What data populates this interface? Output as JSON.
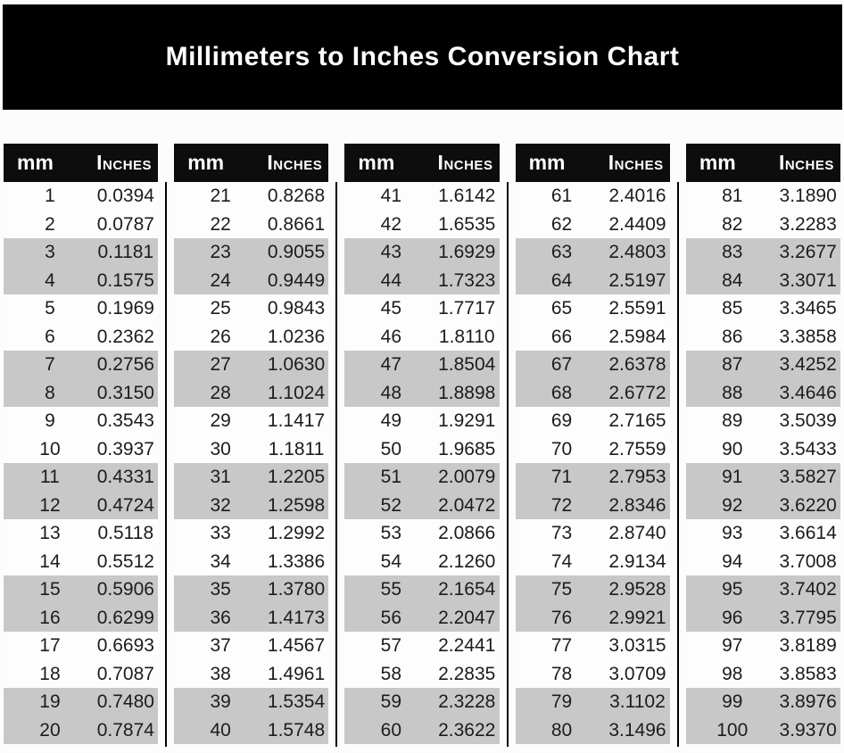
{
  "banner": {
    "title": "Millimeters to Inches Conversion Chart"
  },
  "header": {
    "mm_label": "mm",
    "inches_label": "Inches"
  },
  "colors": {
    "banner_bg": "#000000",
    "banner_text": "#ffffff",
    "table_header_bg": "#0d0d0d",
    "table_header_text": "#ffffff",
    "alt_row_bg": "#c8c8c8",
    "row_text": "#1c1c1c",
    "page_bg": "#fcfcfc",
    "separator": "#000000"
  },
  "chart_data": {
    "type": "table",
    "title": "Millimeters to Inches Conversion Chart",
    "columns": [
      "mm",
      "Inches"
    ],
    "row_shading_pattern": "alternating pairs: two white rows then two gray rows",
    "tables": [
      {
        "rows": [
          {
            "mm": "1",
            "in": "0.0394"
          },
          {
            "mm": "2",
            "in": "0.0787"
          },
          {
            "mm": "3",
            "in": "0.1181"
          },
          {
            "mm": "4",
            "in": "0.1575"
          },
          {
            "mm": "5",
            "in": "0.1969"
          },
          {
            "mm": "6",
            "in": "0.2362"
          },
          {
            "mm": "7",
            "in": "0.2756"
          },
          {
            "mm": "8",
            "in": "0.3150"
          },
          {
            "mm": "9",
            "in": "0.3543"
          },
          {
            "mm": "10",
            "in": "0.3937"
          },
          {
            "mm": "11",
            "in": "0.4331"
          },
          {
            "mm": "12",
            "in": "0.4724"
          },
          {
            "mm": "13",
            "in": "0.5118"
          },
          {
            "mm": "14",
            "in": "0.5512"
          },
          {
            "mm": "15",
            "in": "0.5906"
          },
          {
            "mm": "16",
            "in": "0.6299"
          },
          {
            "mm": "17",
            "in": "0.6693"
          },
          {
            "mm": "18",
            "in": "0.7087"
          },
          {
            "mm": "19",
            "in": "0.7480"
          },
          {
            "mm": "20",
            "in": "0.7874"
          }
        ]
      },
      {
        "rows": [
          {
            "mm": "21",
            "in": "0.8268"
          },
          {
            "mm": "22",
            "in": "0.8661"
          },
          {
            "mm": "23",
            "in": "0.9055"
          },
          {
            "mm": "24",
            "in": "0.9449"
          },
          {
            "mm": "25",
            "in": "0.9843"
          },
          {
            "mm": "26",
            "in": "1.0236"
          },
          {
            "mm": "27",
            "in": "1.0630"
          },
          {
            "mm": "28",
            "in": "1.1024"
          },
          {
            "mm": "29",
            "in": "1.1417"
          },
          {
            "mm": "30",
            "in": "1.1811"
          },
          {
            "mm": "31",
            "in": "1.2205"
          },
          {
            "mm": "32",
            "in": "1.2598"
          },
          {
            "mm": "33",
            "in": "1.2992"
          },
          {
            "mm": "34",
            "in": "1.3386"
          },
          {
            "mm": "35",
            "in": "1.3780"
          },
          {
            "mm": "36",
            "in": "1.4173"
          },
          {
            "mm": "37",
            "in": "1.4567"
          },
          {
            "mm": "38",
            "in": "1.4961"
          },
          {
            "mm": "39",
            "in": "1.5354"
          },
          {
            "mm": "40",
            "in": "1.5748"
          }
        ]
      },
      {
        "rows": [
          {
            "mm": "41",
            "in": "1.6142"
          },
          {
            "mm": "42",
            "in": "1.6535"
          },
          {
            "mm": "43",
            "in": "1.6929"
          },
          {
            "mm": "44",
            "in": "1.7323"
          },
          {
            "mm": "45",
            "in": "1.7717"
          },
          {
            "mm": "46",
            "in": "1.8110"
          },
          {
            "mm": "47",
            "in": "1.8504"
          },
          {
            "mm": "48",
            "in": "1.8898"
          },
          {
            "mm": "49",
            "in": "1.9291"
          },
          {
            "mm": "50",
            "in": "1.9685"
          },
          {
            "mm": "51",
            "in": "2.0079"
          },
          {
            "mm": "52",
            "in": "2.0472"
          },
          {
            "mm": "53",
            "in": "2.0866"
          },
          {
            "mm": "54",
            "in": "2.1260"
          },
          {
            "mm": "55",
            "in": "2.1654"
          },
          {
            "mm": "56",
            "in": "2.2047"
          },
          {
            "mm": "57",
            "in": "2.2441"
          },
          {
            "mm": "58",
            "in": "2.2835"
          },
          {
            "mm": "59",
            "in": "2.3228"
          },
          {
            "mm": "60",
            "in": "2.3622"
          }
        ]
      },
      {
        "rows": [
          {
            "mm": "61",
            "in": "2.4016"
          },
          {
            "mm": "62",
            "in": "2.4409"
          },
          {
            "mm": "63",
            "in": "2.4803"
          },
          {
            "mm": "64",
            "in": "2.5197"
          },
          {
            "mm": "65",
            "in": "2.5591"
          },
          {
            "mm": "66",
            "in": "2.5984"
          },
          {
            "mm": "67",
            "in": "2.6378"
          },
          {
            "mm": "68",
            "in": "2.6772"
          },
          {
            "mm": "69",
            "in": "2.7165"
          },
          {
            "mm": "70",
            "in": "2.7559"
          },
          {
            "mm": "71",
            "in": "2.7953"
          },
          {
            "mm": "72",
            "in": "2.8346"
          },
          {
            "mm": "73",
            "in": "2.8740"
          },
          {
            "mm": "74",
            "in": "2.9134"
          },
          {
            "mm": "75",
            "in": "2.9528"
          },
          {
            "mm": "76",
            "in": "2.9921"
          },
          {
            "mm": "77",
            "in": "3.0315"
          },
          {
            "mm": "78",
            "in": "3.0709"
          },
          {
            "mm": "79",
            "in": "3.1102"
          },
          {
            "mm": "80",
            "in": "3.1496"
          }
        ]
      },
      {
        "rows": [
          {
            "mm": "81",
            "in": "3.1890"
          },
          {
            "mm": "82",
            "in": "3.2283"
          },
          {
            "mm": "83",
            "in": "3.2677"
          },
          {
            "mm": "84",
            "in": "3.3071"
          },
          {
            "mm": "85",
            "in": "3.3465"
          },
          {
            "mm": "86",
            "in": "3.3858"
          },
          {
            "mm": "87",
            "in": "3.4252"
          },
          {
            "mm": "88",
            "in": "3.4646"
          },
          {
            "mm": "89",
            "in": "3.5039"
          },
          {
            "mm": "90",
            "in": "3.5433"
          },
          {
            "mm": "91",
            "in": "3.5827"
          },
          {
            "mm": "92",
            "in": "3.6220"
          },
          {
            "mm": "93",
            "in": "3.6614"
          },
          {
            "mm": "94",
            "in": "3.7008"
          },
          {
            "mm": "95",
            "in": "3.7402"
          },
          {
            "mm": "96",
            "in": "3.7795"
          },
          {
            "mm": "97",
            "in": "3.8189"
          },
          {
            "mm": "98",
            "in": "3.8583"
          },
          {
            "mm": "99",
            "in": "3.8976"
          },
          {
            "mm": "100",
            "in": "3.9370"
          }
        ]
      }
    ]
  }
}
